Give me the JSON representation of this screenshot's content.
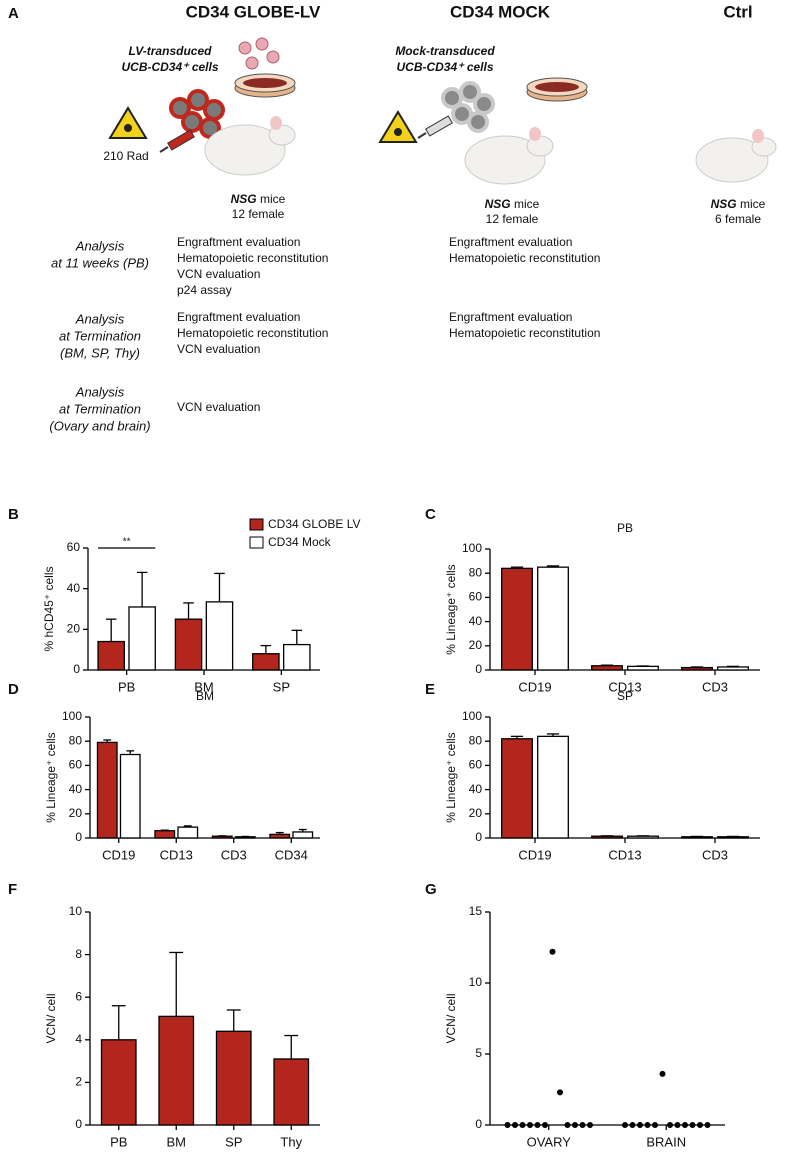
{
  "panel_a": {
    "label": "A",
    "columns": [
      {
        "title": "CD34 GLOBE-LV",
        "cells": [
          "LV-transduced",
          "UCB-CD34⁺ cells"
        ],
        "dose": "210 Rad",
        "mice": {
          "strain": "NSG",
          "text": "mice",
          "count": "12 female"
        }
      },
      {
        "title": "CD34 MOCK",
        "cells": [
          "Mock-transduced",
          "UCB-CD34⁺ cells"
        ],
        "mice": {
          "strain": "NSG",
          "text": "mice",
          "count": "12 female"
        }
      },
      {
        "title": "Ctrl",
        "mice": {
          "strain": "NSG",
          "text": "mice",
          "count": "6 female"
        }
      }
    ],
    "analyses": [
      {
        "label": [
          "Analysis",
          "at 11 weeks (PB)"
        ],
        "items": [
          [
            "Engraftment evaluation",
            "Hematopoietic reconstitution",
            "VCN evaluation",
            "p24 assay"
          ],
          [
            "Engraftment evaluation",
            "Hematopoietic reconstitution"
          ]
        ]
      },
      {
        "label": [
          "Analysis",
          "at Termination",
          "(BM, SP, Thy)"
        ],
        "items": [
          [
            "Engraftment evaluation",
            "Hematopoietic reconstitution",
            "VCN evaluation"
          ],
          [
            "Engraftment evaluation",
            "Hematopoietic reconstitution"
          ]
        ]
      },
      {
        "label": [
          "Analysis",
          "at Termination",
          "(Ovary and brain)"
        ],
        "items": [
          [
            "VCN evaluation"
          ]
        ]
      }
    ]
  },
  "chart_data": [
    {
      "panel": "B",
      "type": "bar",
      "ylabel": "% hCD45⁺ cells",
      "categories": [
        "PB",
        "BM",
        "SP"
      ],
      "series": [
        {
          "name": "CD34 GLOBE LV",
          "color": "#b3261e",
          "values": [
            14,
            25,
            8
          ],
          "errors": [
            11,
            8,
            4
          ]
        },
        {
          "name": "CD34 Mock",
          "color": "#ffffff",
          "values": [
            31,
            33.5,
            12.5
          ],
          "errors": [
            17,
            14,
            7
          ]
        }
      ],
      "annotation": "**",
      "ylim": [
        0,
        60
      ],
      "yticks": [
        0,
        20,
        40,
        60
      ]
    },
    {
      "panel": "C",
      "type": "bar",
      "title": "PB",
      "ylabel": "% Lineage⁺ cells",
      "categories": [
        "CD19",
        "CD13",
        "CD3"
      ],
      "series": [
        {
          "color": "#b3261e",
          "values": [
            84,
            3.5,
            2
          ],
          "errors": [
            1,
            0.5,
            0.5
          ]
        },
        {
          "color": "#ffffff",
          "values": [
            85,
            3,
            2.5
          ],
          "errors": [
            1,
            0.3,
            0.5
          ]
        }
      ],
      "ylim": [
        0,
        100
      ],
      "yticks": [
        0,
        20,
        40,
        60,
        80,
        100
      ]
    },
    {
      "panel": "D",
      "type": "bar",
      "title": "BM",
      "ylabel": "% Lineage⁺ cells",
      "categories": [
        "CD19",
        "CD13",
        "CD3",
        "CD34"
      ],
      "series": [
        {
          "color": "#b3261e",
          "values": [
            79,
            6,
            1.5,
            3
          ],
          "errors": [
            2,
            0.5,
            0.3,
            1.5
          ]
        },
        {
          "color": "#ffffff",
          "values": [
            69,
            9,
            1,
            5
          ],
          "errors": [
            3,
            1,
            0.3,
            2
          ]
        }
      ],
      "ylim": [
        0,
        100
      ],
      "yticks": [
        0,
        20,
        40,
        60,
        80,
        100
      ]
    },
    {
      "panel": "E",
      "type": "bar",
      "title": "SP",
      "ylabel": "% Lineage⁺ cells",
      "categories": [
        "CD19",
        "CD13",
        "CD3"
      ],
      "series": [
        {
          "color": "#b3261e",
          "values": [
            82,
            1.5,
            1
          ],
          "errors": [
            2,
            0.3,
            0.3
          ]
        },
        {
          "color": "#ffffff",
          "values": [
            84,
            1.5,
            1
          ],
          "errors": [
            2,
            0.3,
            0.3
          ]
        }
      ],
      "ylim": [
        0,
        100
      ],
      "yticks": [
        0,
        20,
        40,
        60,
        80,
        100
      ]
    },
    {
      "panel": "F",
      "type": "bar",
      "ylabel": "VCN/ cell",
      "categories": [
        "PB",
        "BM",
        "SP",
        "Thy"
      ],
      "series": [
        {
          "color": "#b3261e",
          "values": [
            4,
            5.1,
            4.4,
            3.1
          ],
          "errors": [
            1.6,
            3,
            1,
            1.1
          ]
        }
      ],
      "ylim": [
        0,
        10
      ],
      "yticks": [
        0,
        2,
        4,
        6,
        8,
        10
      ]
    },
    {
      "panel": "G",
      "type": "strip",
      "ylabel": "VCN/ cell",
      "categories": [
        "OVARY",
        "BRAIN"
      ],
      "color": "#000000",
      "points": [
        [
          0,
          0,
          0,
          0,
          0,
          0,
          12.2,
          2.3,
          0,
          0,
          0,
          0
        ],
        [
          0,
          0,
          0,
          0,
          0,
          3.6,
          0,
          0,
          0,
          0,
          0,
          0
        ]
      ],
      "ylim": [
        0,
        15
      ],
      "yticks": [
        0,
        5,
        10,
        15
      ]
    }
  ]
}
